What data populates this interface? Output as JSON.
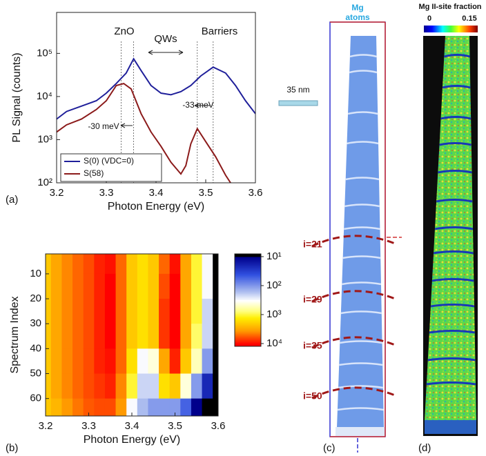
{
  "chart_data": [
    {
      "type": "line",
      "panel_label": "(a)",
      "x_label": "Photon Energy (eV)",
      "y_label": "PL Signal (counts)",
      "log_y": true,
      "xlim": [
        3.2,
        3.6
      ],
      "xticks": [
        3.2,
        3.3,
        3.4,
        3.5,
        3.6
      ],
      "ylim": [
        100,
        890000
      ],
      "yticks": [
        {
          "value": 100,
          "label": "10²"
        },
        {
          "value": 1000,
          "label": "10³"
        },
        {
          "value": 10000,
          "label": "10⁴"
        },
        {
          "value": 100000,
          "label": "10⁵"
        }
      ],
      "legend": "lower left",
      "series": [
        {
          "name": "S(0) (VDC=0)",
          "color": "#1f1f9a",
          "x": [
            3.2,
            3.22,
            3.25,
            3.28,
            3.3,
            3.32,
            3.34,
            3.355,
            3.37,
            3.39,
            3.41,
            3.43,
            3.45,
            3.47,
            3.49,
            3.515,
            3.54,
            3.56,
            3.58,
            3.6
          ],
          "values": [
            3000,
            4500,
            6000,
            8000,
            12000,
            20000,
            35000,
            75000,
            40000,
            18000,
            12000,
            11000,
            13000,
            18000,
            30000,
            48000,
            35000,
            18000,
            8000,
            4000
          ]
        },
        {
          "name": "S(58)",
          "color": "#8b1a1a",
          "x": [
            3.2,
            3.22,
            3.25,
            3.28,
            3.3,
            3.32,
            3.335,
            3.35,
            3.37,
            3.39,
            3.41,
            3.43,
            3.45,
            3.46,
            3.47,
            3.483,
            3.5,
            3.52,
            3.54,
            3.55
          ],
          "values": [
            1500,
            2200,
            3000,
            5000,
            8000,
            18000,
            20000,
            15000,
            4000,
            1500,
            700,
            300,
            160,
            250,
            800,
            1800,
            900,
            400,
            150,
            100
          ]
        }
      ],
      "reference_lines": [
        3.33,
        3.355,
        3.483,
        3.515
      ],
      "annotations": [
        "ZnO",
        "QWs",
        "Barriers",
        "-33 meV",
        "-30 meV"
      ]
    },
    {
      "type": "heatmap",
      "panel_label": "(b)",
      "x_label": "Photon Energy (eV)",
      "y_label": "Spectrum Index",
      "xlim": [
        3.2,
        3.6
      ],
      "xticks": [
        3.2,
        3.3,
        3.4,
        3.5,
        3.6
      ],
      "ylim": [
        67,
        2
      ],
      "yticks": [
        10,
        20,
        30,
        40,
        50,
        60
      ],
      "log_color": true,
      "clim": [
        10,
        10000
      ],
      "cticks": [
        {
          "value": 10,
          "label": "10¹"
        },
        {
          "value": 100,
          "label": "10²"
        },
        {
          "value": 1000,
          "label": "10³"
        },
        {
          "value": 10000,
          "label": "10⁴"
        }
      ],
      "x": [
        3.2,
        3.225,
        3.25,
        3.275,
        3.3,
        3.325,
        3.35,
        3.375,
        3.4,
        3.425,
        3.45,
        3.475,
        3.5,
        3.525,
        3.55,
        3.575,
        3.6
      ],
      "y": [
        5,
        15,
        25,
        35,
        45,
        55,
        65
      ],
      "z": [
        [
          2000,
          3000,
          4000,
          5000,
          6000,
          8000,
          9000,
          5000,
          2000,
          1500,
          2000,
          5000,
          9000,
          3000,
          1000,
          300,
          5
        ],
        [
          2000,
          3000,
          4000,
          5000,
          6000,
          8000,
          10000,
          5000,
          2000,
          1500,
          2000,
          6000,
          12000,
          3000,
          1000,
          300,
          5
        ],
        [
          2000,
          3000,
          4000,
          5000,
          6000,
          8000,
          10000,
          5000,
          2000,
          1500,
          2000,
          7000,
          14000,
          3000,
          1000,
          200,
          5
        ],
        [
          2000,
          3000,
          4000,
          5000,
          6000,
          8000,
          10000,
          5000,
          2000,
          1500,
          2000,
          7000,
          14000,
          3000,
          800,
          200,
          5
        ],
        [
          2000,
          3000,
          4000,
          5000,
          6000,
          8000,
          9000,
          5000,
          1500,
          300,
          400,
          3000,
          8000,
          2000,
          500,
          100,
          5
        ],
        [
          2000,
          3000,
          4000,
          5000,
          6000,
          7000,
          8000,
          4000,
          1000,
          200,
          200,
          1500,
          2000,
          400,
          100,
          20,
          5
        ],
        [
          2000,
          2500,
          3500,
          4500,
          5500,
          6000,
          6000,
          3500,
          300,
          150,
          100,
          100,
          100,
          50,
          10,
          5,
          5
        ]
      ]
    }
  ],
  "panels": {
    "c": {
      "label": "(c)",
      "title": [
        "Mg",
        "atoms"
      ],
      "scale_bar": "35 nm",
      "layers": [
        "i=21",
        "i=29",
        "i=35",
        "i=50"
      ]
    },
    "d": {
      "label": "(d)",
      "colorbar_title": "Mg II-site fraction",
      "colorbar_lim": [
        0,
        0.15
      ],
      "colorbar_ticks": [
        0,
        0.15
      ]
    }
  }
}
